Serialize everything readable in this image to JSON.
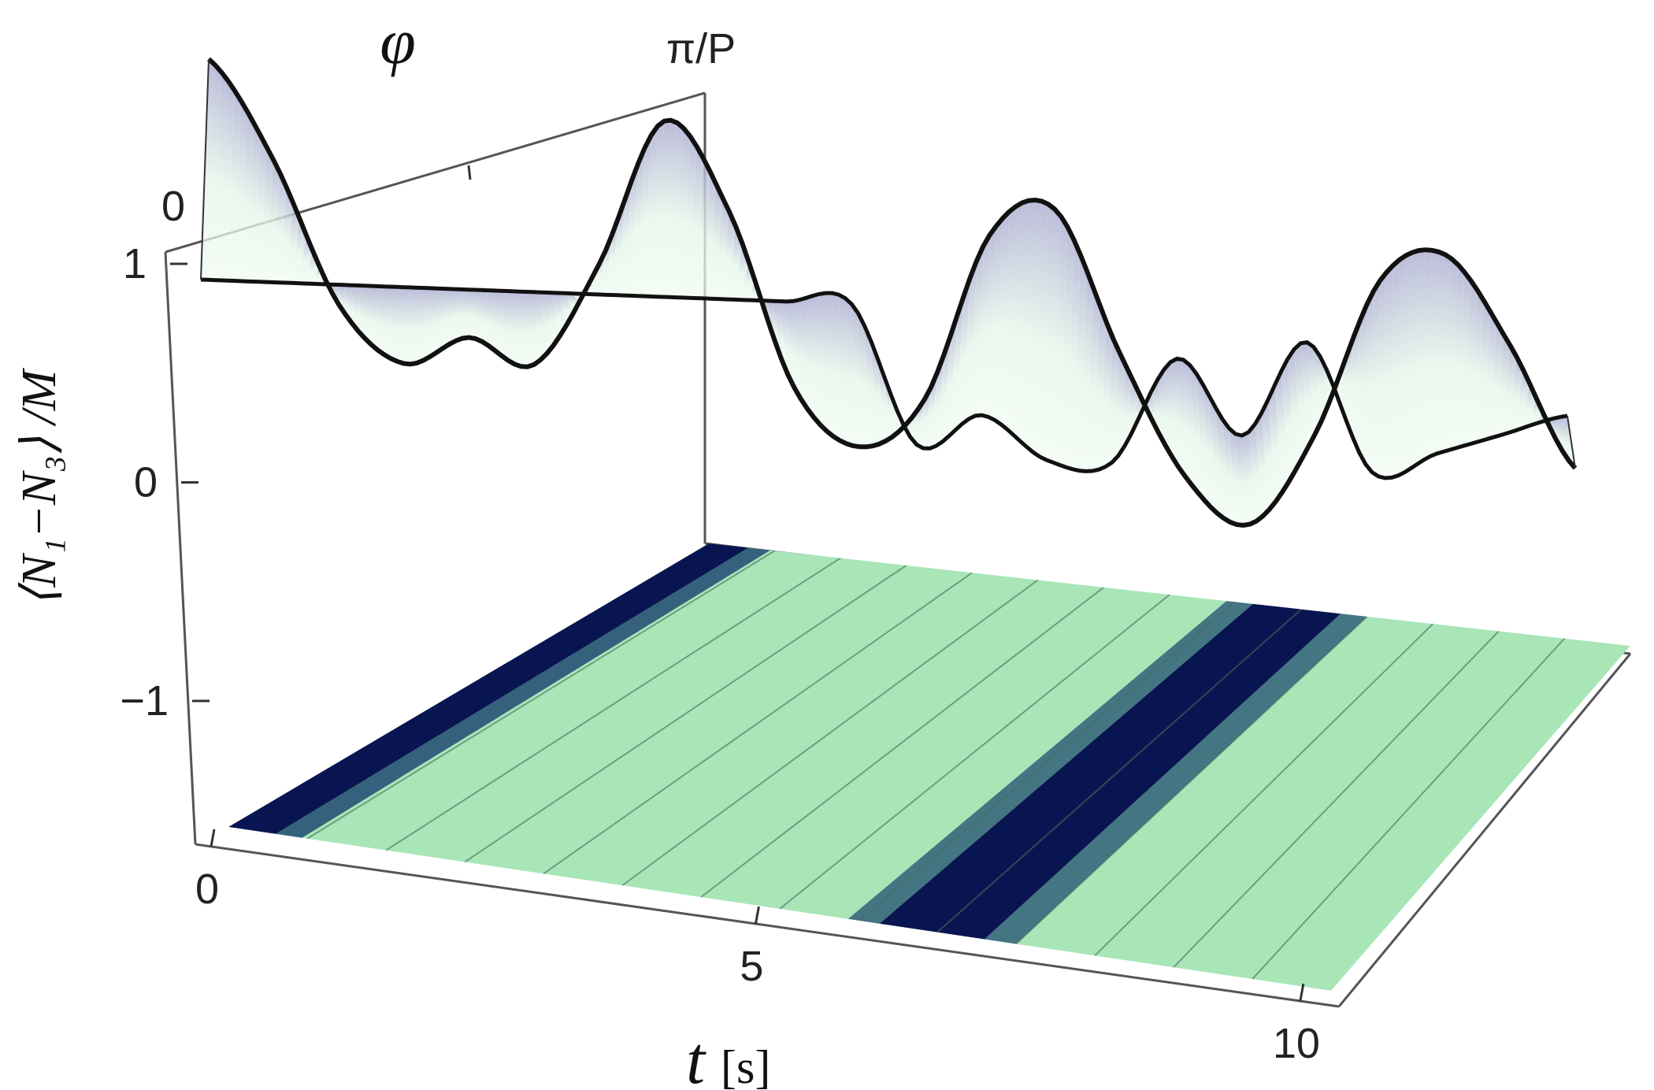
{
  "chart_data": {
    "type": "surface3d",
    "title": "",
    "x_axis": {
      "label_main": "t",
      "label_unit": "[s]",
      "ticks": [
        0,
        5,
        10
      ],
      "range": [
        0,
        10.5
      ]
    },
    "y_axis": {
      "label": "φ",
      "ticks": [
        "0",
        "π/P"
      ],
      "range": [
        0,
        1
      ]
    },
    "z_axis": {
      "label": "⟨N₁−N₃⟩ /M",
      "ticks": [
        "1",
        "0",
        "−1"
      ],
      "tick_values": [
        1,
        0,
        -1
      ],
      "range": [
        -1,
        1
      ]
    },
    "series": [
      {
        "phi": 0,
        "t": [
          0,
          0.5,
          1,
          1.5,
          2,
          2.5,
          3,
          3.5,
          4,
          4.5,
          5,
          5.5,
          6,
          6.5,
          7,
          7.5,
          8,
          8.5,
          9,
          9.5,
          10,
          10.5
        ],
        "values": [
          1.0,
          0.55,
          -0.1,
          -0.35,
          -0.2,
          -0.3,
          0.2,
          0.9,
          0.5,
          -0.3,
          -0.55,
          -0.3,
          0.5,
          0.65,
          0.0,
          -0.55,
          -0.75,
          -0.3,
          0.45,
          0.6,
          0.2,
          -0.35
        ]
      },
      {
        "phi": 1,
        "t": [
          0,
          0.5,
          1,
          1.5,
          2,
          2.5,
          3,
          3.5,
          4,
          4.5,
          5,
          5.5,
          6,
          6.5,
          7,
          7.5,
          8,
          8.5,
          9,
          9.5,
          10,
          10.5
        ],
        "values": [
          1.0,
          1.0,
          1.0,
          1.0,
          1.0,
          1.0,
          1.0,
          1.0,
          1.0,
          1.0,
          1.0,
          0.35,
          0.5,
          0.3,
          0.3,
          0.8,
          0.45,
          0.9,
          0.3,
          0.4,
          0.5,
          0.6
        ]
      }
    ],
    "contour_projection": "floor",
    "colors": {
      "surface_high": "#b4b6d6",
      "surface_low": "#e8f7ec",
      "contour_base": "#a8e6b8",
      "contour_dark": "#000a4a",
      "contour_mid": "#5f8e8a",
      "contour_light": "#9fd0e8"
    }
  }
}
